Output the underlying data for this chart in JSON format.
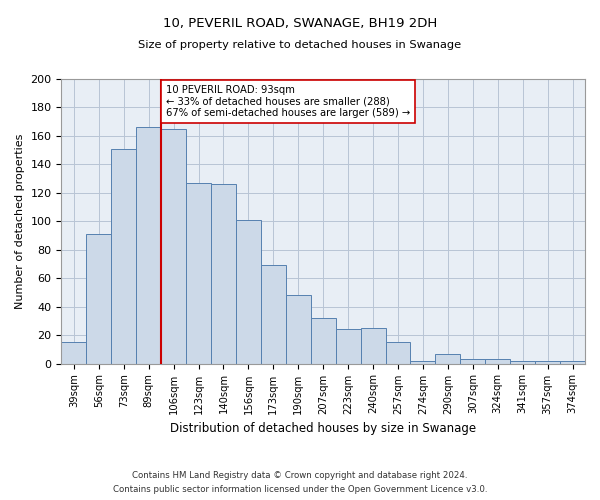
{
  "title1": "10, PEVERIL ROAD, SWANAGE, BH19 2DH",
  "title2": "Size of property relative to detached houses in Swanage",
  "xlabel": "Distribution of detached houses by size in Swanage",
  "ylabel": "Number of detached properties",
  "categories": [
    "39sqm",
    "56sqm",
    "73sqm",
    "89sqm",
    "106sqm",
    "123sqm",
    "140sqm",
    "156sqm",
    "173sqm",
    "190sqm",
    "207sqm",
    "223sqm",
    "240sqm",
    "257sqm",
    "274sqm",
    "290sqm",
    "307sqm",
    "324sqm",
    "341sqm",
    "357sqm",
    "374sqm"
  ],
  "bar_heights": [
    15,
    91,
    151,
    166,
    165,
    127,
    126,
    101,
    69,
    48,
    32,
    24,
    25,
    15,
    2,
    7,
    3,
    3,
    2,
    2,
    2
  ],
  "annotation_text": "10 PEVERIL ROAD: 93sqm\n← 33% of detached houses are smaller (288)\n67% of semi-detached houses are larger (589) →",
  "bar_color": "#ccd9e8",
  "bar_edge_color": "#5580b0",
  "line_color": "#cc0000",
  "bg_color": "#e8eef5",
  "grid_color": "#b8c4d4",
  "ylim": [
    0,
    200
  ],
  "yticks": [
    0,
    20,
    40,
    60,
    80,
    100,
    120,
    140,
    160,
    180,
    200
  ],
  "line_x_index": 3.5,
  "footer1": "Contains HM Land Registry data © Crown copyright and database right 2024.",
  "footer2": "Contains public sector information licensed under the Open Government Licence v3.0."
}
